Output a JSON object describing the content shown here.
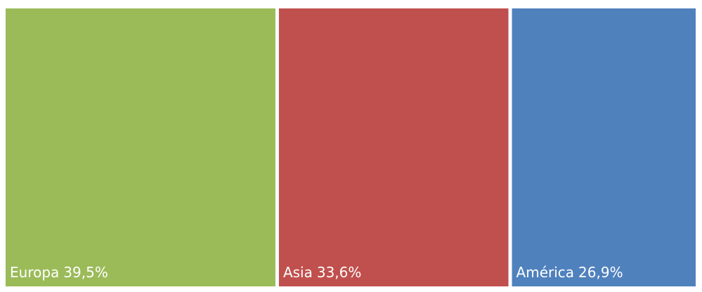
{
  "chart_data": {
    "type": "treemap",
    "categories": [
      "Europa",
      "Asia",
      "América"
    ],
    "values": [
      39.5,
      33.6,
      26.9
    ],
    "value_labels": [
      "39,5%",
      "33,6%",
      "26,9%"
    ],
    "colors": [
      "#9bbb59",
      "#c0504d",
      "#4f81bd"
    ]
  }
}
